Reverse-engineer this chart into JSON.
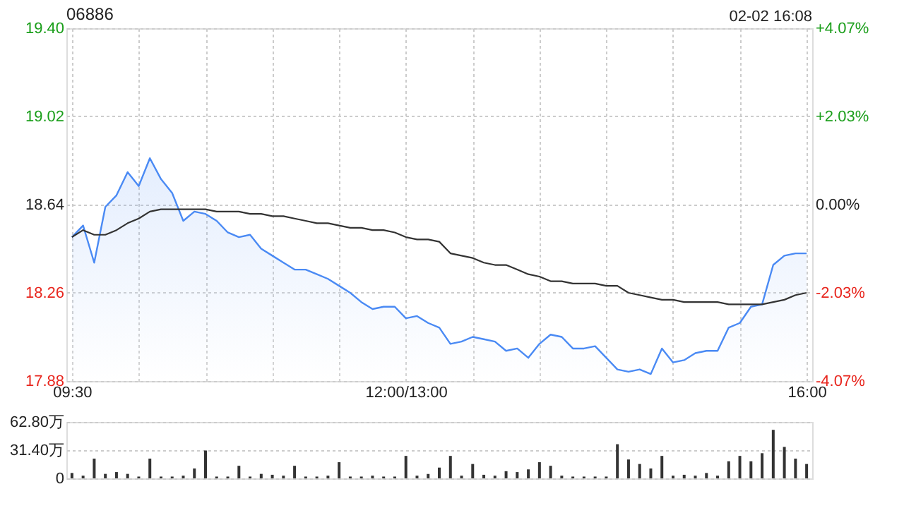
{
  "chart_data": [
    {
      "type": "line",
      "title": "06886",
      "annotations": [
        "02-02 16:08"
      ],
      "categories": [
        "09:30",
        null,
        null,
        null,
        null,
        null,
        null,
        null,
        null,
        null,
        null,
        null,
        null,
        null,
        null,
        null,
        null,
        null,
        null,
        null,
        null,
        null,
        null,
        null,
        null,
        null,
        null,
        null,
        null,
        null,
        "12:00/13:00",
        null,
        null,
        null,
        null,
        null,
        null,
        null,
        null,
        null,
        null,
        null,
        null,
        null,
        null,
        null,
        null,
        null,
        null,
        null,
        null,
        null,
        null,
        null,
        null,
        null,
        null,
        null,
        null,
        null,
        null,
        null,
        null,
        null,
        null,
        null,
        "16:00"
      ],
      "ylim": [
        17.88,
        19.4
      ],
      "yticks": [
        {
          "value": 17.88,
          "label": "17.88"
        },
        {
          "value": 18.26,
          "label": "18.26"
        },
        {
          "value": 18.64,
          "label": "18.64"
        },
        {
          "value": 19.02,
          "label": "19.02"
        },
        {
          "value": 19.4,
          "label": "19.40"
        }
      ],
      "y2lim": [
        -4.07,
        4.07
      ],
      "y2ticks": [
        {
          "value": -4.07,
          "label": "-4.07%"
        },
        {
          "value": -2.03,
          "label": "-2.03%"
        },
        {
          "value": 0,
          "label": "0.00%"
        },
        {
          "value": 2.03,
          "label": "+2.03%"
        },
        {
          "value": 4.07,
          "label": "+4.07%"
        }
      ],
      "grid": true,
      "marker": "none",
      "line_style": "solid",
      "series": [
        {
          "type": "area",
          "color": "#4a8af4",
          "values": [
            18.5,
            18.55,
            18.39,
            18.63,
            18.68,
            18.78,
            18.72,
            18.84,
            18.75,
            18.69,
            18.57,
            18.61,
            18.6,
            18.57,
            18.52,
            18.5,
            18.51,
            18.45,
            18.42,
            18.39,
            18.36,
            18.36,
            18.34,
            18.32,
            18.29,
            18.26,
            18.22,
            18.19,
            18.2,
            18.2,
            18.15,
            18.16,
            18.13,
            18.11,
            18.04,
            18.05,
            18.07,
            18.06,
            18.05,
            18.01,
            18.02,
            17.98,
            18.04,
            18.08,
            18.07,
            18.02,
            18.02,
            18.03,
            17.98,
            17.93,
            17.92,
            17.93,
            17.91,
            18.02,
            17.96,
            17.97,
            18.0,
            18.01,
            18.01,
            18.11,
            18.13,
            18.2,
            18.21,
            18.38,
            18.42,
            18.43,
            18.43
          ]
        },
        {
          "type": "line",
          "color": "#333333",
          "values": [
            18.5,
            18.53,
            18.51,
            18.51,
            18.53,
            18.56,
            18.58,
            18.61,
            18.62,
            18.62,
            18.62,
            18.62,
            18.62,
            18.61,
            18.61,
            18.61,
            18.6,
            18.6,
            18.59,
            18.59,
            18.58,
            18.57,
            18.56,
            18.56,
            18.55,
            18.54,
            18.54,
            18.53,
            18.53,
            18.52,
            18.5,
            18.49,
            18.49,
            18.48,
            18.43,
            18.42,
            18.41,
            18.39,
            18.38,
            18.38,
            18.36,
            18.34,
            18.33,
            18.31,
            18.31,
            18.3,
            18.3,
            18.3,
            18.29,
            18.29,
            18.26,
            18.25,
            18.24,
            18.23,
            18.23,
            18.22,
            18.22,
            18.22,
            18.22,
            18.21,
            18.21,
            18.21,
            18.21,
            18.22,
            18.23,
            18.25,
            18.26
          ]
        }
      ]
    },
    {
      "type": "bar",
      "tick_labels": "y",
      "grid": "y",
      "categories": [
        null,
        null,
        null,
        null,
        null,
        null,
        null,
        null,
        null,
        null,
        null,
        null,
        null,
        null,
        null,
        null,
        null,
        null,
        null,
        null,
        null,
        null,
        null,
        null,
        null,
        null,
        null,
        null,
        null,
        null,
        null,
        null,
        null,
        null,
        null,
        null,
        null,
        null,
        null,
        null,
        null,
        null,
        null,
        null,
        null,
        null,
        null,
        null,
        null,
        null,
        null,
        null,
        null,
        null,
        null,
        null,
        null,
        null,
        null,
        null,
        null,
        null,
        null,
        null,
        null,
        null,
        null
      ],
      "ylim": [
        0,
        62.8
      ],
      "yticks": [
        {
          "value": 0,
          "label": "0"
        },
        {
          "value": 31.4,
          "label": "31.40万"
        },
        {
          "value": 62.8,
          "label": "62.80万"
        }
      ],
      "series": [
        {
          "color": "#333333",
          "values": [
            6,
            3,
            22,
            5,
            7,
            5,
            2,
            22,
            2,
            2,
            3,
            11,
            31,
            2,
            2,
            14,
            2,
            5,
            4,
            3,
            14,
            2,
            2,
            3,
            18,
            2,
            2,
            3,
            2,
            2,
            25,
            3,
            5,
            12,
            25,
            3,
            16,
            4,
            3,
            8,
            7,
            10,
            18,
            14,
            3,
            2,
            2,
            2,
            2,
            38,
            21,
            16,
            11,
            25,
            3,
            4,
            3,
            6,
            3,
            19,
            25,
            19,
            28,
            54,
            35,
            22,
            16
          ]
        }
      ]
    }
  ]
}
